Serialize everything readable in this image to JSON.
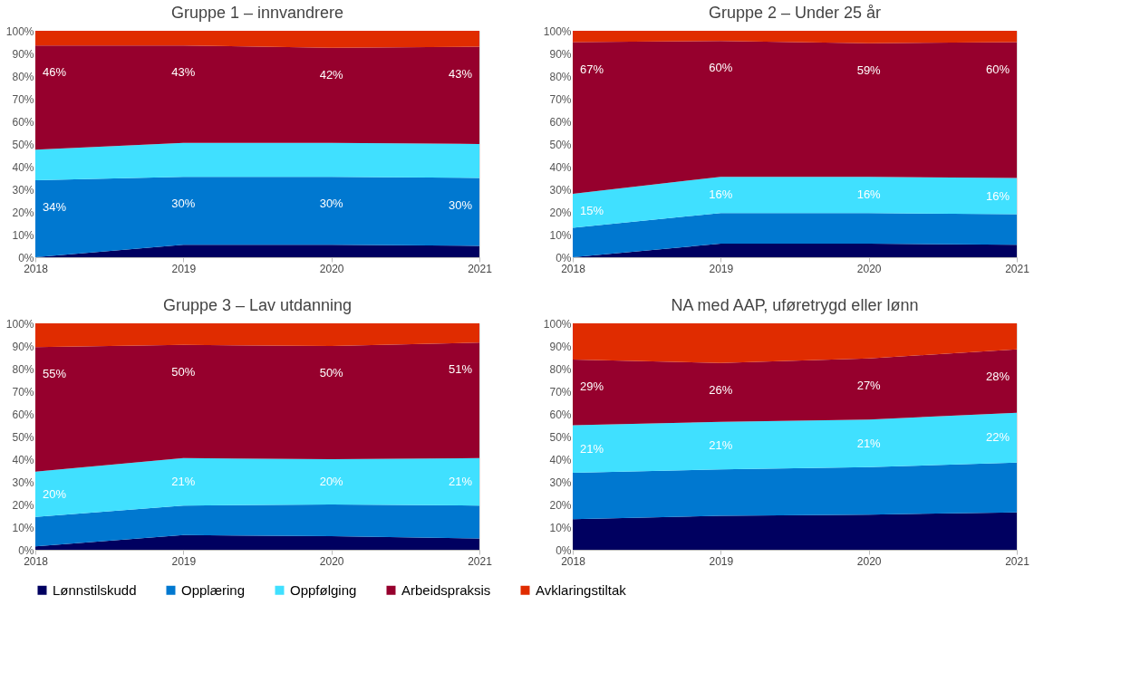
{
  "chart_data": [
    {
      "type": "area",
      "stacked": true,
      "title": "Gruppe 1 – innvandrere",
      "x": [
        2018,
        2019,
        2020,
        2021
      ],
      "xlim": [
        2018,
        2021
      ],
      "xticks": [
        2018,
        2019,
        2020,
        2021
      ],
      "ylim": [
        0,
        100
      ],
      "yticks": [
        {
          "value": 0,
          "label": "0%"
        },
        {
          "value": 10,
          "label": "10%"
        },
        {
          "value": 20,
          "label": "20%"
        },
        {
          "value": 30,
          "label": "30%"
        },
        {
          "value": 40,
          "label": "40%"
        },
        {
          "value": 50,
          "label": "50%"
        },
        {
          "value": 60,
          "label": "60%"
        },
        {
          "value": 70,
          "label": "70%"
        },
        {
          "value": 80,
          "label": "80%"
        },
        {
          "value": 90,
          "label": "90%"
        },
        {
          "value": 100,
          "label": "100%"
        }
      ],
      "grid": false,
      "legend": "bottom",
      "series": [
        {
          "name": "Lønnstilskudd",
          "color": "#000060",
          "values": [
            0,
            5.5,
            5.5,
            5
          ]
        },
        {
          "name": "Opplæring",
          "color": "#0078d0",
          "values": [
            34,
            30,
            30,
            30
          ],
          "value_labels": [
            "34%",
            "30%",
            "30%",
            "30%"
          ]
        },
        {
          "name": "Oppfølging",
          "color": "#40e0ff",
          "values": [
            13.5,
            15,
            15,
            15
          ]
        },
        {
          "name": "Arbeidspraksis",
          "color": "#96002d",
          "values": [
            46,
            43,
            42,
            43
          ],
          "value_labels": [
            "46%",
            "43%",
            "42%",
            "43%"
          ]
        },
        {
          "name": "Avklaringstiltak",
          "color": "#e02c00",
          "values": [
            6.5,
            6.5,
            7.5,
            7
          ]
        }
      ]
    },
    {
      "type": "area",
      "stacked": true,
      "title": "Gruppe 2 – Under 25 år",
      "x": [
        2018,
        2019,
        2020,
        2021
      ],
      "xlim": [
        2018,
        2021
      ],
      "xticks": [
        2018,
        2019,
        2020,
        2021
      ],
      "ylim": [
        0,
        100
      ],
      "yticks": [
        {
          "value": 0,
          "label": "0%"
        },
        {
          "value": 10,
          "label": "10%"
        },
        {
          "value": 20,
          "label": "20%"
        },
        {
          "value": 30,
          "label": "30%"
        },
        {
          "value": 40,
          "label": "40%"
        },
        {
          "value": 50,
          "label": "50%"
        },
        {
          "value": 60,
          "label": "60%"
        },
        {
          "value": 70,
          "label": "70%"
        },
        {
          "value": 80,
          "label": "80%"
        },
        {
          "value": 90,
          "label": "90%"
        },
        {
          "value": 100,
          "label": "100%"
        }
      ],
      "grid": false,
      "legend": "bottom",
      "series": [
        {
          "name": "Lønnstilskudd",
          "color": "#000060",
          "values": [
            0,
            6,
            6,
            5.5
          ]
        },
        {
          "name": "Opplæring",
          "color": "#0078d0",
          "values": [
            13,
            13.5,
            13.5,
            13.5
          ]
        },
        {
          "name": "Oppfølging",
          "color": "#40e0ff",
          "values": [
            15,
            16,
            16,
            16
          ],
          "value_labels": [
            "15%",
            "16%",
            "16%",
            "16%"
          ]
        },
        {
          "name": "Arbeidspraksis",
          "color": "#96002d",
          "values": [
            67,
            60,
            59,
            60
          ],
          "value_labels": [
            "67%",
            "60%",
            "59%",
            "60%"
          ]
        },
        {
          "name": "Avklaringstiltak",
          "color": "#e02c00",
          "values": [
            5,
            4.5,
            5.5,
            5
          ]
        }
      ]
    },
    {
      "type": "area",
      "stacked": true,
      "title": "Gruppe 3 – Lav utdanning",
      "x": [
        2018,
        2019,
        2020,
        2021
      ],
      "xlim": [
        2018,
        2021
      ],
      "xticks": [
        2018,
        2019,
        2020,
        2021
      ],
      "ylim": [
        0,
        100
      ],
      "yticks": [
        {
          "value": 0,
          "label": "0%"
        },
        {
          "value": 10,
          "label": "10%"
        },
        {
          "value": 20,
          "label": "20%"
        },
        {
          "value": 30,
          "label": "30%"
        },
        {
          "value": 40,
          "label": "40%"
        },
        {
          "value": 50,
          "label": "50%"
        },
        {
          "value": 60,
          "label": "60%"
        },
        {
          "value": 70,
          "label": "70%"
        },
        {
          "value": 80,
          "label": "80%"
        },
        {
          "value": 90,
          "label": "90%"
        },
        {
          "value": 100,
          "label": "100%"
        }
      ],
      "grid": false,
      "legend": "bottom",
      "series": [
        {
          "name": "Lønnstilskudd",
          "color": "#000060",
          "values": [
            1.5,
            6.5,
            6,
            5
          ]
        },
        {
          "name": "Opplæring",
          "color": "#0078d0",
          "values": [
            13,
            13,
            14,
            14.5
          ]
        },
        {
          "name": "Oppfølging",
          "color": "#40e0ff",
          "values": [
            20,
            21,
            20,
            21
          ],
          "value_labels": [
            "20%",
            "21%",
            "20%",
            "21%"
          ]
        },
        {
          "name": "Arbeidspraksis",
          "color": "#96002d",
          "values": [
            55,
            50,
            50,
            51
          ],
          "value_labels": [
            "55%",
            "50%",
            "50%",
            "51%"
          ]
        },
        {
          "name": "Avklaringstiltak",
          "color": "#e02c00",
          "values": [
            10.5,
            9.5,
            10,
            8.5
          ]
        }
      ]
    },
    {
      "type": "area",
      "stacked": true,
      "title": "NA med AAP, uføretrygd eller lønn",
      "x": [
        2018,
        2019,
        2020,
        2021
      ],
      "xlim": [
        2018,
        2021
      ],
      "xticks": [
        2018,
        2019,
        2020,
        2021
      ],
      "ylim": [
        0,
        100
      ],
      "yticks": [
        {
          "value": 0,
          "label": "0%"
        },
        {
          "value": 10,
          "label": "10%"
        },
        {
          "value": 20,
          "label": "20%"
        },
        {
          "value": 30,
          "label": "30%"
        },
        {
          "value": 40,
          "label": "40%"
        },
        {
          "value": 50,
          "label": "50%"
        },
        {
          "value": 60,
          "label": "60%"
        },
        {
          "value": 70,
          "label": "70%"
        },
        {
          "value": 80,
          "label": "80%"
        },
        {
          "value": 90,
          "label": "90%"
        },
        {
          "value": 100,
          "label": "100%"
        }
      ],
      "grid": false,
      "legend": "bottom",
      "series": [
        {
          "name": "Lønnstilskudd",
          "color": "#000060",
          "values": [
            13.5,
            15,
            15.5,
            16.5
          ]
        },
        {
          "name": "Opplæring",
          "color": "#0078d0",
          "values": [
            20.5,
            20.5,
            21,
            22
          ]
        },
        {
          "name": "Oppfølging",
          "color": "#40e0ff",
          "values": [
            21,
            21,
            21,
            22
          ],
          "value_labels": [
            "21%",
            "21%",
            "21%",
            "22%"
          ]
        },
        {
          "name": "Arbeidspraksis",
          "color": "#96002d",
          "values": [
            29,
            26,
            27,
            28
          ],
          "value_labels": [
            "29%",
            "26%",
            "27%",
            "28%"
          ]
        },
        {
          "name": "Avklaringstiltak",
          "color": "#e02c00",
          "values": [
            16,
            17.5,
            15.5,
            11.5
          ]
        }
      ]
    }
  ]
}
